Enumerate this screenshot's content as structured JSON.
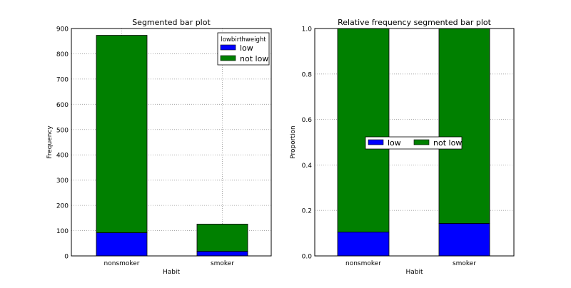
{
  "chart_data": [
    {
      "type": "bar",
      "stacked": true,
      "title": "Segmented bar plot",
      "xlabel": "Habit",
      "ylabel": "Frequency",
      "categories": [
        "nonsmoker",
        "smoker"
      ],
      "series": [
        {
          "name": "low",
          "values": [
            92,
            18
          ],
          "color": "#0000ff"
        },
        {
          "name": "not low",
          "values": [
            781,
            108
          ],
          "color": "#008000"
        }
      ],
      "ylim": [
        0,
        900
      ],
      "yticks": [
        0,
        100,
        200,
        300,
        400,
        500,
        600,
        700,
        800,
        900
      ],
      "ytick_labels": [
        "0",
        "100",
        "200",
        "300",
        "400",
        "500",
        "600",
        "700",
        "800",
        "900"
      ],
      "grid": true,
      "legend": {
        "title": "lowbirthweight",
        "placement": "top-right"
      }
    },
    {
      "type": "bar",
      "stacked": true,
      "title": "Relative frequency segmented bar plot",
      "xlabel": "Habit",
      "ylabel": "Proportion",
      "categories": [
        "nonsmoker",
        "smoker"
      ],
      "series": [
        {
          "name": "low",
          "values": [
            0.105,
            0.143
          ],
          "color": "#0000ff"
        },
        {
          "name": "not low",
          "values": [
            0.895,
            0.857
          ],
          "color": "#008000"
        }
      ],
      "ylim": [
        0,
        1.0
      ],
      "yticks": [
        0,
        0.2,
        0.4,
        0.6,
        0.8,
        1.0
      ],
      "ytick_labels": [
        "0.0",
        "0.2",
        "0.4",
        "0.6",
        "0.8",
        "1.0"
      ],
      "grid": true,
      "legend": {
        "title": "",
        "placement": "center"
      }
    }
  ]
}
